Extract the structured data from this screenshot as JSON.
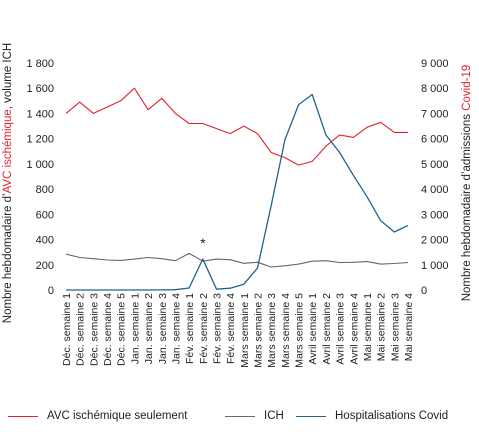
{
  "chart_data": {
    "type": "line",
    "categories": [
      "Déc. semaine 1",
      "Déc. semaine 2",
      "Déc. semaine 3",
      "Déc. semaine 4",
      "Déc. semaine 5",
      "Jan. semaine 1",
      "Jan. semaine 2",
      "Jan. semaine 3",
      "Jan. semaine 4",
      "Fév. semaine 1",
      "Fév. semaine 2",
      "Fév. semaine 3",
      "Fév. semaine 4",
      "Mars semaine 1",
      "Mars semaine 2",
      "Mars semaine 3",
      "Mars semaine 4",
      "Mars semaine 5",
      "Avril semaine 1",
      "Avril semaine 2",
      "Avril semaine 3",
      "Avril semaine 4",
      "Mai semaine 1",
      "Mai semaine 2",
      "Mai semaine 3",
      "Mai semaine 4"
    ],
    "series": [
      {
        "name": "AVC ischémique seulement",
        "axis": "left",
        "color": "#e3212f",
        "values": [
          1400,
          1490,
          1400,
          1450,
          1500,
          1600,
          1430,
          1520,
          1400,
          1320,
          1320,
          1280,
          1240,
          1300,
          1240,
          1090,
          1050,
          990,
          1020,
          1140,
          1230,
          1210,
          1290,
          1330,
          1250,
          1250
        ]
      },
      {
        "name": "ICH",
        "axis": "left",
        "color": "#666666",
        "values": [
          285,
          258,
          248,
          238,
          235,
          245,
          258,
          248,
          232,
          290,
          228,
          245,
          240,
          212,
          220,
          182,
          192,
          205,
          228,
          232,
          218,
          220,
          225,
          205,
          210,
          218
        ]
      },
      {
        "name": "Hospitalisations Covid",
        "axis": "right",
        "color": "#21638b",
        "values": [
          0,
          0,
          0,
          0,
          0,
          0,
          0,
          5,
          10,
          80,
          1230,
          30,
          70,
          230,
          870,
          3350,
          5950,
          7350,
          7750,
          6150,
          5450,
          4550,
          3700,
          2750,
          2300,
          2560
        ]
      }
    ],
    "ylabel_left_prefix": "Nombre hebdomadaire d’",
    "ylabel_left_highlight": "AVC ischémique",
    "ylabel_left_suffix": ", volume ICH",
    "ylabel_right_prefix": "Nombre hebdomadaire d’admissions ",
    "ylabel_right_highlight": "Covid-19",
    "ylim_left": [
      0,
      1800
    ],
    "ylim_right": [
      0,
      9000
    ],
    "yticks_left": [
      "0",
      "200",
      "400",
      "600",
      "800",
      "1 000",
      "1 200",
      "1 400",
      "1 600",
      "1 800"
    ],
    "yticks_right": [
      "0",
      "1 000",
      "2 000",
      "3 000",
      "4 000",
      "5 000",
      "6 000",
      "7 000",
      "8 000",
      "9 000"
    ],
    "annotation": {
      "text": "*",
      "category_index": 10
    },
    "highlight_color": "#e3212f",
    "grid": false,
    "legend_position": "bottom"
  }
}
